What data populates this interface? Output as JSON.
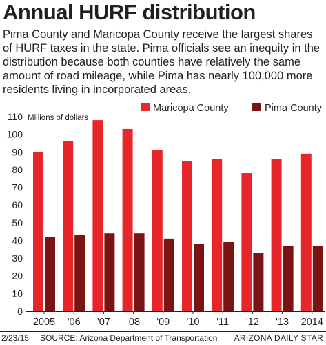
{
  "header": {
    "title": "Annual HURF distribution",
    "description": "Pima County and Maricopa County receive the largest shares of HURF taxes in the state. Pima officials see an inequity in the distribution because both counties have relatively the same amount of road mileage, while Pima has nearly 100,000 more residents living in incorporated areas."
  },
  "chart_data": {
    "type": "bar",
    "title": "",
    "ylabel": "Millions of dollars",
    "xlabel": "",
    "ylim": [
      0,
      110
    ],
    "yticks": [
      "0",
      "10",
      "20",
      "30",
      "40",
      "50",
      "60",
      "70",
      "80",
      "90",
      "100",
      "110"
    ],
    "categories": [
      "2005",
      "'06",
      "'07",
      "'08",
      "'09",
      "'10",
      "'11",
      "'12",
      "'13",
      "2014"
    ],
    "series": [
      {
        "name": "Maricopa County",
        "color": "#e8262a",
        "values": [
          90,
          96,
          108,
          103,
          91,
          85,
          86,
          78,
          86,
          89
        ]
      },
      {
        "name": "Pima County",
        "color": "#7a1313",
        "values": [
          42,
          43,
          44,
          44,
          41,
          38,
          39,
          33,
          37,
          37
        ]
      }
    ],
    "legend_position": "top-right",
    "grid": false
  },
  "footer": {
    "date": "2/23/15",
    "source": "SOURCE: Arizona Department of Transportation",
    "credit": "ARIZONA DAILY STAR"
  },
  "colors": {
    "text": "#231f20",
    "maricopa": "#e8262a",
    "pima": "#7a1313"
  }
}
